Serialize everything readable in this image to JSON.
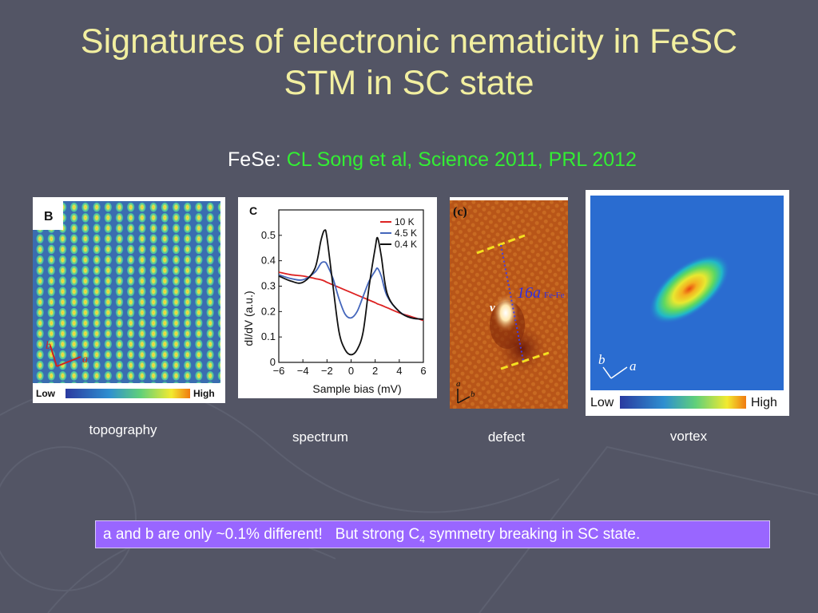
{
  "slide": {
    "title_line1": "Signatures of electronic nematicity in FeSC",
    "title_line2": "STM in SC state",
    "subtitle_prefix": "FeSe: ",
    "subtitle_ref": "CL Song et al, Science 2011, PRL 2012"
  },
  "panels": {
    "topography": {
      "tag": "B",
      "axis_a": "a",
      "axis_b": "b",
      "colorbar_low": "Low",
      "colorbar_high": "High",
      "caption": "topography"
    },
    "spectrum": {
      "tag": "C",
      "caption": "spectrum"
    },
    "defect": {
      "tag": "(c)",
      "label_v": "v",
      "distance_label": "16a",
      "distance_sub": "Fe-Fe",
      "axis_a": "a",
      "axis_b": "b",
      "caption": "defect"
    },
    "vortex": {
      "axis_b": "b",
      "axis_a": "a",
      "colorbar_low": "Low",
      "colorbar_high": "High",
      "caption": "vortex"
    }
  },
  "note": {
    "part1": "a and b are only ~0.1% different!",
    "part2_pre": "But strong C",
    "part2_sub": "4",
    "part2_post": " symmetry breaking in SC state."
  },
  "chart_data": {
    "type": "line",
    "xlabel": "Sample bias (mV)",
    "ylabel": "dI/dV (a.u.)",
    "xlim": [
      -6,
      6
    ],
    "ylim": [
      0,
      0.6
    ],
    "xticks": [
      "−6",
      "−4",
      "−2",
      "0",
      "2",
      "4",
      "6"
    ],
    "yticks": [
      "0",
      "0.1",
      "0.2",
      "0.3",
      "0.4",
      "0.5"
    ],
    "legend_position": "top-right",
    "x": [
      -6,
      -5,
      -4,
      -3,
      -2.5,
      -2.2,
      -2,
      -1.5,
      -1,
      -0.5,
      0,
      0.5,
      1,
      1.5,
      2,
      2.2,
      2.5,
      3,
      4,
      5,
      6
    ],
    "series": [
      {
        "name": "10 K",
        "color": "#dd2222",
        "values": [
          0.355,
          0.345,
          0.34,
          0.33,
          0.325,
          0.32,
          0.315,
          0.305,
          0.295,
          0.285,
          0.275,
          0.265,
          0.255,
          0.245,
          0.235,
          0.23,
          0.225,
          0.215,
          0.195,
          0.18,
          0.165
        ]
      },
      {
        "name": "4.5 K",
        "color": "#4466bb",
        "values": [
          0.345,
          0.33,
          0.325,
          0.355,
          0.39,
          0.395,
          0.385,
          0.33,
          0.25,
          0.19,
          0.175,
          0.2,
          0.26,
          0.32,
          0.36,
          0.37,
          0.34,
          0.26,
          0.2,
          0.175,
          0.17
        ]
      },
      {
        "name": "0.4 K",
        "color": "#111111",
        "values": [
          0.34,
          0.32,
          0.315,
          0.37,
          0.48,
          0.52,
          0.49,
          0.3,
          0.12,
          0.05,
          0.03,
          0.05,
          0.12,
          0.3,
          0.45,
          0.49,
          0.42,
          0.27,
          0.2,
          0.175,
          0.17
        ]
      }
    ]
  }
}
